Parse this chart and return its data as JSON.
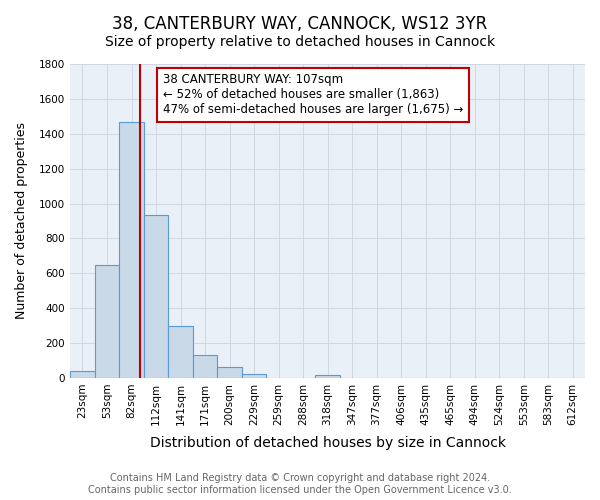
{
  "title": "38, CANTERBURY WAY, CANNOCK, WS12 3YR",
  "subtitle": "Size of property relative to detached houses in Cannock",
  "xlabel": "Distribution of detached houses by size in Cannock",
  "ylabel": "Number of detached properties",
  "bin_labels": [
    "23sqm",
    "53sqm",
    "82sqm",
    "112sqm",
    "141sqm",
    "171sqm",
    "200sqm",
    "229sqm",
    "259sqm",
    "288sqm",
    "318sqm",
    "347sqm",
    "377sqm",
    "406sqm",
    "435sqm",
    "465sqm",
    "494sqm",
    "524sqm",
    "553sqm",
    "583sqm",
    "612sqm"
  ],
  "bar_values": [
    40,
    650,
    1470,
    935,
    295,
    130,
    65,
    22,
    0,
    0,
    15,
    0,
    0,
    0,
    0,
    0,
    0,
    0,
    0,
    0,
    0
  ],
  "bar_color": "#c9d9e8",
  "bar_edge_color": "#5b9bd5",
  "red_line_color": "#c00000",
  "annotation_text": "38 CANTERBURY WAY: 107sqm\n← 52% of detached houses are smaller (1,863)\n47% of semi-detached houses are larger (1,675) →",
  "annotation_box_color": "#ffffff",
  "annotation_box_edge_color": "#c00000",
  "ylim": [
    0,
    1800
  ],
  "yticks": [
    0,
    200,
    400,
    600,
    800,
    1000,
    1200,
    1400,
    1600,
    1800
  ],
  "grid_color": "#d0d8e4",
  "background_color": "#eaf0f7",
  "footer_text": "Contains HM Land Registry data © Crown copyright and database right 2024.\nContains public sector information licensed under the Open Government Licence v3.0.",
  "title_fontsize": 12,
  "subtitle_fontsize": 10,
  "xlabel_fontsize": 10,
  "ylabel_fontsize": 9,
  "tick_fontsize": 7.5,
  "annotation_fontsize": 8.5,
  "footer_fontsize": 7
}
